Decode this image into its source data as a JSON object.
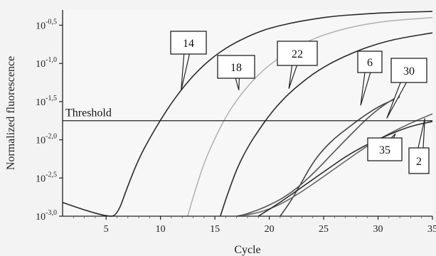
{
  "chart_data": {
    "type": "line",
    "title": "",
    "xlabel": "Cycle",
    "ylabel": "Normalized fluorescence",
    "xlim": [
      1,
      35
    ],
    "ylim": [
      -3.0,
      -0.3
    ],
    "y_scale": "log10",
    "x_ticks": [
      "5",
      "10",
      "15",
      "20",
      "25",
      "30",
      "35"
    ],
    "y_ticks": [
      {
        "base": "10",
        "exp": "-3,0"
      },
      {
        "base": "10",
        "exp": "-2,5"
      },
      {
        "base": "10",
        "exp": "-2,0"
      },
      {
        "base": "10",
        "exp": "-1,5"
      },
      {
        "base": "10",
        "exp": "-1,0"
      },
      {
        "base": "10",
        "exp": "-0,5"
      }
    ],
    "threshold": {
      "label": "Threshold",
      "log_value": -1.75
    },
    "series": [
      {
        "name": "14",
        "color": "#2a2a2a",
        "x": [
          1,
          3,
          5,
          6,
          7,
          8,
          9,
          10,
          11,
          12,
          13,
          14,
          15,
          16,
          17,
          18,
          19,
          20,
          22,
          24,
          26,
          28,
          30,
          32,
          35
        ],
        "y": [
          -2.82,
          -2.92,
          -3.05,
          -3.05,
          -2.6,
          -2.25,
          -1.98,
          -1.74,
          -1.52,
          -1.33,
          -1.16,
          -1.02,
          -0.9,
          -0.8,
          -0.72,
          -0.65,
          -0.59,
          -0.54,
          -0.47,
          -0.42,
          -0.38,
          -0.36,
          -0.34,
          -0.33,
          -0.32
        ]
      },
      {
        "name": "18",
        "color": "#b5b5b5",
        "x": [
          12.5,
          13,
          14,
          15,
          16,
          17,
          18,
          19,
          20,
          22,
          24,
          26,
          28,
          30,
          32,
          35
        ],
        "y": [
          -3.05,
          -2.75,
          -2.3,
          -1.98,
          -1.7,
          -1.48,
          -1.3,
          -1.15,
          -1.02,
          -0.82,
          -0.68,
          -0.58,
          -0.51,
          -0.46,
          -0.43,
          -0.4
        ]
      },
      {
        "name": "22",
        "color": "#2a2a2a",
        "x": [
          15.5,
          16,
          17,
          18,
          19,
          20,
          21,
          22,
          23,
          24,
          25,
          26,
          28,
          30,
          32,
          35
        ],
        "y": [
          -3.05,
          -2.78,
          -2.38,
          -2.1,
          -1.88,
          -1.68,
          -1.51,
          -1.37,
          -1.25,
          -1.14,
          -1.05,
          -0.97,
          -0.84,
          -0.74,
          -0.67,
          -0.6
        ]
      },
      {
        "name": "6",
        "color": "#444444",
        "x": [
          21,
          22,
          23,
          24,
          25,
          26,
          27,
          28,
          29,
          30,
          31,
          32
        ],
        "y": [
          -3.05,
          -2.8,
          -2.55,
          -2.3,
          -2.12,
          -1.98,
          -1.87,
          -1.76,
          -1.66,
          -1.57,
          -1.5,
          -1.44
        ]
      },
      {
        "name": "30",
        "color": "#555555",
        "x": [
          17,
          18,
          20,
          22,
          24,
          26,
          28,
          29,
          30,
          31,
          32
        ],
        "y": [
          -3.0,
          -2.97,
          -2.86,
          -2.7,
          -2.45,
          -2.15,
          -1.86,
          -1.72,
          -1.6,
          -1.5,
          -1.42
        ]
      },
      {
        "name": "35",
        "color": "#666666",
        "x": [
          17,
          19,
          21,
          23,
          25,
          27,
          29,
          31,
          33,
          35
        ],
        "y": [
          -3.0,
          -2.96,
          -2.85,
          -2.68,
          -2.48,
          -2.28,
          -2.08,
          -1.92,
          -1.78,
          -1.66
        ]
      },
      {
        "name": "2",
        "color": "#2a2a2a",
        "x": [
          19,
          21,
          23,
          25,
          27,
          29,
          31,
          33,
          35
        ],
        "y": [
          -3.05,
          -2.82,
          -2.62,
          -2.42,
          -2.22,
          -2.06,
          -1.93,
          -1.82,
          -1.76
        ]
      }
    ],
    "callouts": [
      {
        "label": "14",
        "series": "14"
      },
      {
        "label": "18",
        "series": "18"
      },
      {
        "label": "22",
        "series": "22"
      },
      {
        "label": "6",
        "series": "6"
      },
      {
        "label": "30",
        "series": "30"
      },
      {
        "label": "35",
        "series": "35"
      },
      {
        "label": "2",
        "series": "2"
      }
    ]
  }
}
